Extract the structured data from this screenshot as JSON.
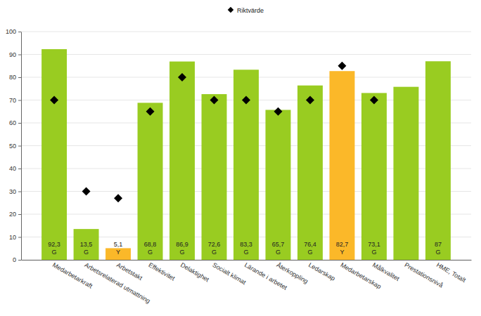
{
  "chart_data": {
    "type": "bar",
    "categories": [
      "Medarbetarkraft",
      "Arbetsrelaterad utmattning",
      "Arbetstakt",
      "Effektivitet",
      "Delaktighet",
      "Socialt klimat",
      "Lärande i arbetet",
      "Återkoppling",
      "Ledarskap",
      "Medarbetarskap",
      "Målkvalitet",
      "Prestationsnivå",
      "HME, Totalt"
    ],
    "series": [
      {
        "type": "bar",
        "values": [
          92.3,
          13.5,
          5.1,
          68.8,
          86.9,
          72.6,
          83.3,
          65.7,
          76.4,
          82.7,
          73.1,
          75.8,
          87
        ],
        "value_labels": [
          "92,3",
          "13,5",
          "5,1",
          "68,8",
          "86,9",
          "72,6",
          "83,3",
          "65,7",
          "76,4",
          "82,7",
          "73,1",
          null,
          "87"
        ],
        "grade_labels": [
          "G",
          "G",
          "Y",
          "G",
          "G",
          "G",
          "G",
          "G",
          "G",
          "Y",
          "G",
          null,
          "G"
        ],
        "colors": [
          "#99cc21",
          "#99cc21",
          "#fbb829",
          "#99cc21",
          "#99cc21",
          "#99cc21",
          "#99cc21",
          "#99cc21",
          "#99cc21",
          "#fbb829",
          "#99cc21",
          "#99cc21",
          "#99cc21"
        ]
      },
      {
        "name": "Riktvärde",
        "type": "scatter",
        "marker": "diamond",
        "color": "#000000",
        "values": [
          70,
          30,
          27,
          65,
          80,
          70,
          70,
          65,
          70,
          85,
          70,
          null,
          null
        ]
      }
    ],
    "ylim": [
      0,
      100
    ],
    "yticks": [
      0,
      10,
      20,
      30,
      40,
      50,
      60,
      70,
      80,
      90,
      100
    ],
    "grid": true,
    "legend": "top",
    "data_labels": true
  }
}
